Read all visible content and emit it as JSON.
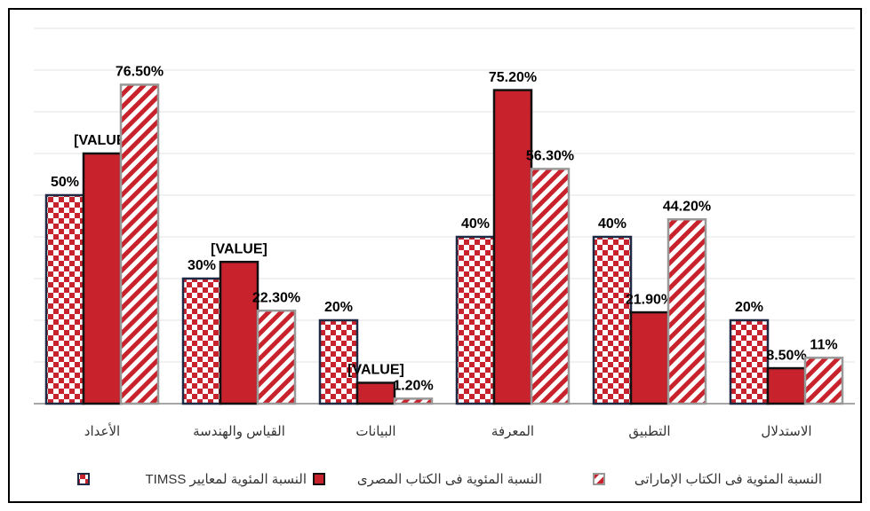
{
  "chart_data": {
    "type": "bar",
    "categories": [
      "الأعداد",
      "القياس والهندسة",
      "البيانات",
      "المعرفة",
      "التطبيق",
      "الاستدلال"
    ],
    "series": [
      {
        "name": "النسبة المئوية لمعايير TIMSS",
        "color": "#c8232c",
        "pattern": "checker",
        "values": [
          50,
          30,
          20,
          40,
          40,
          20
        ],
        "value_labels": [
          "50%",
          "30%",
          "20%",
          "40%",
          "40%",
          "20%"
        ]
      },
      {
        "name": "النسبة المئوية فى الكتاب المصرى",
        "color": "#c8232c",
        "pattern": "solid",
        "values": [
          60,
          34,
          5,
          75.2,
          21.9,
          8.5
        ],
        "value_labels": [
          "[VALUE]",
          "[VALUE]",
          "[VALUE]",
          "75.20%",
          "21.90%",
          "8.50%"
        ]
      },
      {
        "name": "النسبة المئوية فى الكتاب الإماراتى",
        "color": "#c8232c",
        "pattern": "stripes",
        "values": [
          76.5,
          22.3,
          1.2,
          56.3,
          44.2,
          11
        ],
        "value_labels": [
          "76.50%",
          "22.30%",
          "1.20%",
          "56.30%",
          "44.20%",
          "11%"
        ]
      }
    ],
    "ylim": [
      0,
      90
    ],
    "yticks": [
      0,
      10,
      20,
      30,
      40,
      50,
      60,
      70,
      80,
      90
    ],
    "grid": true
  }
}
